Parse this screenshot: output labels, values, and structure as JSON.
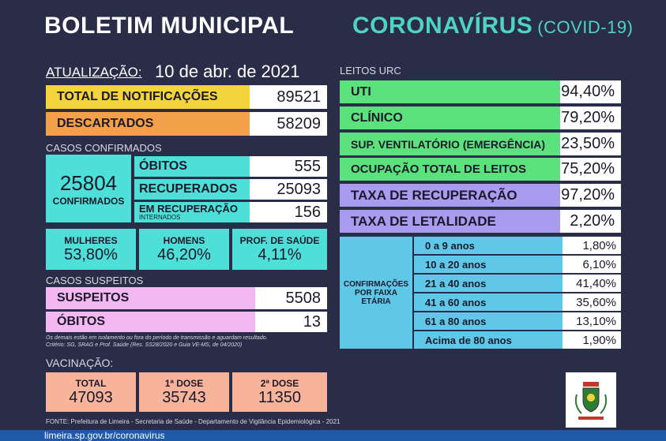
{
  "header": {
    "title_left": "BOLETIM MUNICIPAL",
    "title_right": "CORONAVÍRUS",
    "title_right_sub": "(COVID-19)"
  },
  "update": {
    "label": "ATUALIZAÇÃO:",
    "date": "10 de abr. de 2021"
  },
  "totals": {
    "notificacoes": {
      "label": "TOTAL DE NOTIFICAÇÕES",
      "value": "89521",
      "color": "#f4d43c"
    },
    "descartados": {
      "label": "DESCARTADOS",
      "value": "58209",
      "color": "#f2a04a"
    }
  },
  "confirmados": {
    "section": "CASOS CONFIRMADOS",
    "total": "25804",
    "total_label": "CONFIRMADOS",
    "obitos_label": "ÓBITOS",
    "obitos": "555",
    "recuperados_label": "RECUPERADOS",
    "recuperados": "25093",
    "em_recuperacao_label": "EM RECUPERAÇÃO",
    "em_recuperacao_sub": "INTERNADOS",
    "em_recuperacao": "156",
    "mulheres_label": "MULHERES",
    "mulheres": "53,80%",
    "homens_label": "HOMENS",
    "homens": "46,20%",
    "prof_label": "PROF. DE SAÚDE",
    "prof": "4,11%"
  },
  "suspeitos": {
    "section": "CASOS SUSPEITOS",
    "suspeitos_label": "SUSPEITOS",
    "suspeitos": "5508",
    "obitos_label": "ÓBITOS",
    "obitos": "13",
    "note1": "Os demais estão em isolamento ou fora do período de transmissão e aguardam resultado.",
    "note2": "Critério: SG, SRAG e Prof. Saúde (Res. SS28/2020 e Guia VE-MS, de 04/2020)"
  },
  "vacinacao": {
    "section": "VACINAÇÃO:",
    "total_label": "TOTAL",
    "total": "47093",
    "dose1_label": "1ª DOSE",
    "dose1": "35743",
    "dose2_label": "2ª DOSE",
    "dose2": "11350"
  },
  "leitos": {
    "section": "LEITOS URC",
    "uti_label": "UTI",
    "uti": "94,40%",
    "clinico_label": "CLÍNICO",
    "clinico": "79,20%",
    "sup_label": "SUP. VENTILATÓRIO (EMERGÊNCIA)",
    "sup": "23,50%",
    "ocup_label": "OCUPAÇÃO TOTAL DE LEITOS",
    "ocup": "75,20%",
    "recup_label": "TAXA DE RECUPERAÇÃO",
    "recup": "97,20%",
    "letal_label": "TAXA DE LETALIDADE",
    "letal": "2,20%"
  },
  "faixa": {
    "title": "CONFIRMAÇÕES POR FAIXA ETÁRIA",
    "rows": [
      {
        "label": "0 a 9 anos",
        "value": "1,80%"
      },
      {
        "label": "10 a 20 anos",
        "value": "6,10%"
      },
      {
        "label": "21 a 40 anos",
        "value": "41,40%"
      },
      {
        "label": "41 a 60 anos",
        "value": "35,60%"
      },
      {
        "label": "61 a 80 anos",
        "value": "13,10%"
      },
      {
        "label": "Acima de 80 anos",
        "value": "1,90%"
      }
    ]
  },
  "footer": {
    "fonte": "FONTE: Prefeitura de Limeira - Secretaria de Saúde - Departamento de Vigilância Epidemiológica - 2021",
    "url": "limeira.sp.gov.br/coronavirus"
  },
  "colors": {
    "green": "#5ce27c",
    "purple": "#a99bf0",
    "pink": "#f3b8f2",
    "cyan": "#4ee0d8",
    "salmon": "#f8b49a",
    "age": "#5fc8e8"
  }
}
